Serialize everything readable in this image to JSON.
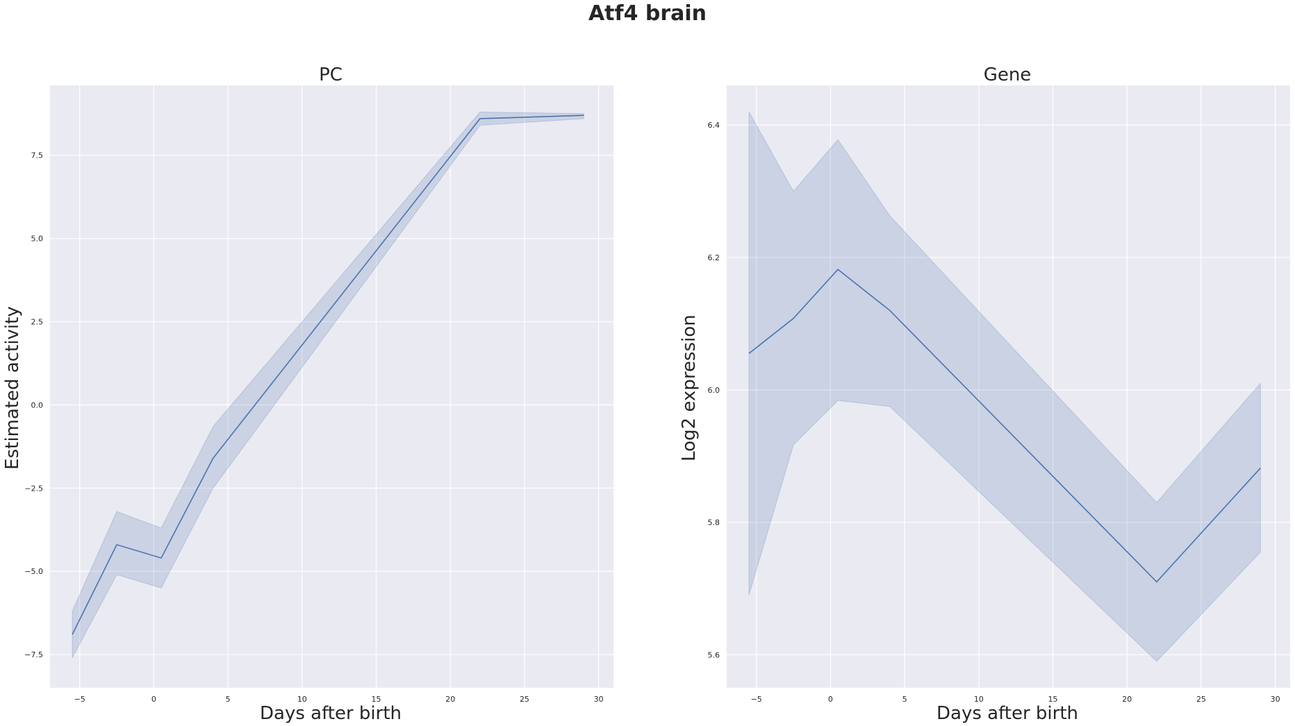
{
  "figure": {
    "suptitle": "Atf4 brain"
  },
  "chart_data": [
    {
      "type": "line",
      "title": "PC",
      "xlabel": "Days after birth",
      "ylabel": "Estimated activity",
      "xlim": [
        -7,
        31
      ],
      "ylim": [
        -8.5,
        9.6
      ],
      "xticks": [
        -5,
        0,
        5,
        10,
        15,
        20,
        25,
        30
      ],
      "xtick_labels": [
        "−5",
        "0",
        "5",
        "10",
        "15",
        "20",
        "25",
        "30"
      ],
      "yticks": [
        -7.5,
        -5.0,
        -2.5,
        0.0,
        2.5,
        5.0,
        7.5
      ],
      "ytick_labels": [
        "−7.5",
        "−5.0",
        "−2.5",
        "0.0",
        "2.5",
        "5.0",
        "7.5"
      ],
      "grid": true,
      "series": [
        {
          "x": [
            -5.5,
            -2.5,
            0.5,
            4,
            22,
            29
          ],
          "y": [
            -6.9,
            -4.2,
            -4.6,
            -1.6,
            8.6,
            8.7
          ],
          "ci_low": [
            -7.6,
            -5.1,
            -5.5,
            -2.5,
            8.4,
            8.6
          ],
          "ci_high": [
            -6.2,
            -3.2,
            -3.7,
            -0.65,
            8.8,
            8.75
          ]
        }
      ],
      "colors": {
        "line": "#4c72b0",
        "band": "#4c72b0",
        "background": "#eaeaf2",
        "grid": "#ffffff"
      }
    },
    {
      "type": "line",
      "title": "Gene",
      "xlabel": "Days after birth",
      "ylabel": "Log2 expression",
      "xlim": [
        -7,
        31
      ],
      "ylim": [
        5.55,
        6.46
      ],
      "xticks": [
        -5,
        0,
        5,
        10,
        15,
        20,
        25,
        30
      ],
      "xtick_labels": [
        "−5",
        "0",
        "5",
        "10",
        "15",
        "20",
        "25",
        "30"
      ],
      "yticks": [
        5.6,
        5.8,
        6.0,
        6.2,
        6.4
      ],
      "ytick_labels": [
        "5.6",
        "5.8",
        "6.0",
        "6.2",
        "6.4"
      ],
      "grid": true,
      "series": [
        {
          "x": [
            -5.5,
            -2.5,
            0.5,
            4,
            22,
            29
          ],
          "y": [
            6.055,
            6.108,
            6.182,
            6.12,
            5.71,
            5.882
          ],
          "ci_low": [
            5.69,
            5.917,
            5.984,
            5.975,
            5.59,
            5.755
          ],
          "ci_high": [
            6.42,
            6.3,
            6.378,
            6.263,
            5.83,
            6.01
          ]
        }
      ],
      "colors": {
        "line": "#4c72b0",
        "band": "#4c72b0",
        "background": "#eaeaf2",
        "grid": "#ffffff"
      }
    }
  ]
}
